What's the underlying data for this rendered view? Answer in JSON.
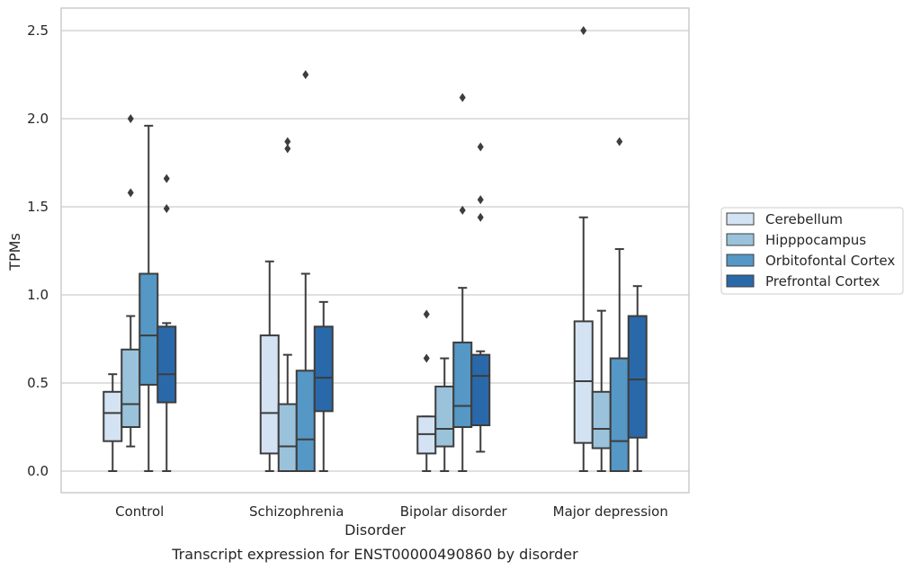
{
  "chart_data": {
    "type": "box",
    "caption": "Transcript expression for ENST00000490860 by disorder",
    "xlabel": "Disorder",
    "ylabel": "TPMs",
    "ylim": [
      -0.12,
      2.63
    ],
    "yticks": [
      0.0,
      0.5,
      1.0,
      1.5,
      2.0,
      2.5
    ],
    "ytick_labels": [
      "0.0",
      "0.5",
      "1.0",
      "1.5",
      "2.0",
      "2.5"
    ],
    "grid": "horizontal",
    "legend_position": "right",
    "categories": [
      "Control",
      "Schizophrenia",
      "Bipolar disorder",
      "Major depression"
    ],
    "series": [
      {
        "name": "Cerebellum",
        "color": "#d4e3f3",
        "boxes": [
          {
            "whisker_low": 0.0,
            "q1": 0.17,
            "median": 0.33,
            "q3": 0.45,
            "whisker_high": 0.55,
            "outliers": []
          },
          {
            "whisker_low": 0.0,
            "q1": 0.1,
            "median": 0.33,
            "q3": 0.77,
            "whisker_high": 1.19,
            "outliers": []
          },
          {
            "whisker_low": 0.0,
            "q1": 0.1,
            "median": 0.21,
            "q3": 0.31,
            "whisker_high": 0.31,
            "outliers": [
              0.64,
              0.89
            ]
          },
          {
            "whisker_low": 0.0,
            "q1": 0.16,
            "median": 0.51,
            "q3": 0.85,
            "whisker_high": 1.44,
            "outliers": [
              2.5
            ]
          }
        ]
      },
      {
        "name": "Hipppocampus",
        "color": "#9ac3db",
        "boxes": [
          {
            "whisker_low": 0.14,
            "q1": 0.25,
            "median": 0.38,
            "q3": 0.69,
            "whisker_high": 0.88,
            "outliers": [
              1.58,
              2.0
            ]
          },
          {
            "whisker_low": 0.0,
            "q1": 0.0,
            "median": 0.14,
            "q3": 0.38,
            "whisker_high": 0.66,
            "outliers": [
              1.83,
              1.87
            ]
          },
          {
            "whisker_low": 0.0,
            "q1": 0.14,
            "median": 0.24,
            "q3": 0.48,
            "whisker_high": 0.64,
            "outliers": []
          },
          {
            "whisker_low": 0.0,
            "q1": 0.13,
            "median": 0.24,
            "q3": 0.45,
            "whisker_high": 0.91,
            "outliers": []
          }
        ]
      },
      {
        "name": "Orbitofontal Cortex",
        "color": "#5597c5",
        "boxes": [
          {
            "whisker_low": 0.0,
            "q1": 0.49,
            "median": 0.77,
            "q3": 1.12,
            "whisker_high": 1.96,
            "outliers": []
          },
          {
            "whisker_low": 0.0,
            "q1": 0.0,
            "median": 0.18,
            "q3": 0.57,
            "whisker_high": 1.12,
            "outliers": [
              2.25
            ]
          },
          {
            "whisker_low": 0.0,
            "q1": 0.25,
            "median": 0.37,
            "q3": 0.73,
            "whisker_high": 1.04,
            "outliers": [
              1.48,
              2.12
            ]
          },
          {
            "whisker_low": 0.0,
            "q1": 0.0,
            "median": 0.17,
            "q3": 0.64,
            "whisker_high": 1.26,
            "outliers": [
              1.87
            ]
          }
        ]
      },
      {
        "name": "Prefrontal Cortex",
        "color": "#2a69a9",
        "boxes": [
          {
            "whisker_low": 0.0,
            "q1": 0.39,
            "median": 0.55,
            "q3": 0.82,
            "whisker_high": 0.84,
            "outliers": [
              1.49,
              1.66
            ]
          },
          {
            "whisker_low": 0.0,
            "q1": 0.34,
            "median": 0.53,
            "q3": 0.82,
            "whisker_high": 0.96,
            "outliers": []
          },
          {
            "whisker_low": 0.11,
            "q1": 0.26,
            "median": 0.54,
            "q3": 0.66,
            "whisker_high": 0.68,
            "outliers": [
              1.44,
              1.54,
              1.84
            ]
          },
          {
            "whisker_low": 0.0,
            "q1": 0.19,
            "median": 0.52,
            "q3": 0.88,
            "whisker_high": 1.05,
            "outliers": []
          }
        ]
      }
    ]
  }
}
